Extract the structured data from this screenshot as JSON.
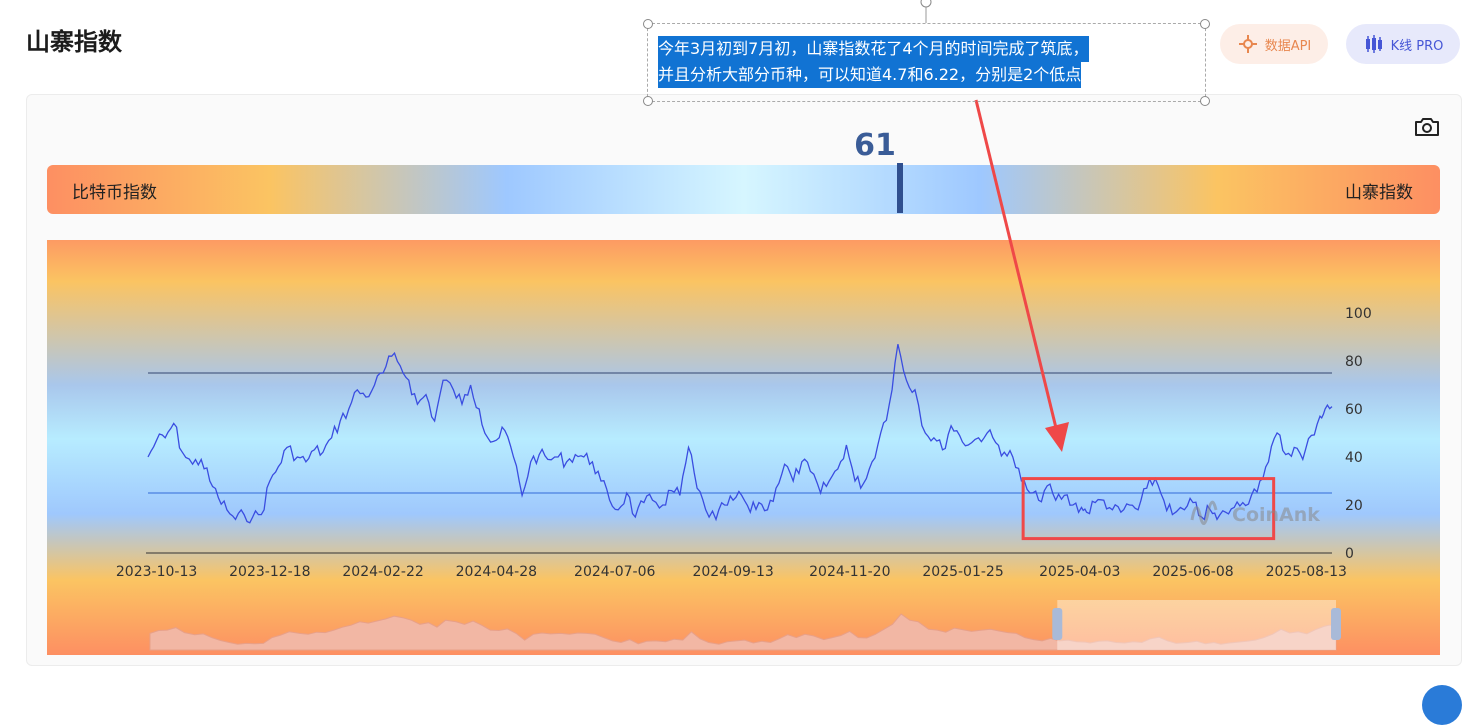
{
  "page": {
    "title": "山寨指数"
  },
  "buttons": {
    "api_label": "数据API",
    "kline_label": "K线 PRO"
  },
  "toolbar": {
    "camera_icon": "camera-icon"
  },
  "gauge": {
    "current_value": "61",
    "value_fraction": 0.61,
    "left_label": "比特币指数",
    "right_label": "山寨指数"
  },
  "annotation": {
    "line1": "今年3月初到7月初，山寨指数花了4个月的时间完成了筑底，",
    "line2": "并且分析大部分币种，可以知道4.7和6.22，分别是2个低点"
  },
  "watermark": "CoinAnk",
  "colors": {
    "series": "#3a4de0",
    "annotation_box": "#ef4848",
    "arrow": "#ef4848",
    "high_line": "#4d5f86",
    "low_line": "#4a7fe0"
  },
  "chart_data": {
    "type": "line",
    "title": "",
    "ylim": [
      0,
      100
    ],
    "yticks": [
      0,
      20,
      40,
      60,
      80,
      100
    ],
    "reference_lines": [
      75,
      25
    ],
    "xtick_labels": [
      "2023-10-13",
      "2023-12-18",
      "2024-02-22",
      "2024-04-28",
      "2024-07-06",
      "2024-09-13",
      "2024-11-20",
      "2025-01-25",
      "2025-04-03",
      "2025-06-08",
      "2025-08-13"
    ],
    "x_start": "2023-10-08",
    "x_end": "2025-08-28",
    "series": [
      {
        "points": [
          [
            "2023-10-08",
            40
          ],
          [
            "2023-10-13",
            47
          ],
          [
            "2023-10-18",
            48
          ],
          [
            "2023-10-23",
            54
          ],
          [
            "2023-10-28",
            42
          ],
          [
            "2023-11-03",
            37
          ],
          [
            "2023-11-08",
            39
          ],
          [
            "2023-11-13",
            30
          ],
          [
            "2023-11-18",
            23
          ],
          [
            "2023-11-23",
            18
          ],
          [
            "2023-11-28",
            14
          ],
          [
            "2023-12-03",
            16
          ],
          [
            "2023-12-08",
            15
          ],
          [
            "2023-12-13",
            16
          ],
          [
            "2023-12-18",
            30
          ],
          [
            "2023-12-23",
            36
          ],
          [
            "2023-12-28",
            44
          ],
          [
            "2024-01-03",
            40
          ],
          [
            "2024-01-08",
            38
          ],
          [
            "2024-01-13",
            43
          ],
          [
            "2024-01-18",
            42
          ],
          [
            "2024-01-23",
            48
          ],
          [
            "2024-01-28",
            55
          ],
          [
            "2024-02-02",
            60
          ],
          [
            "2024-02-07",
            68
          ],
          [
            "2024-02-12",
            65
          ],
          [
            "2024-02-17",
            70
          ],
          [
            "2024-02-22",
            75
          ],
          [
            "2024-02-27",
            82
          ],
          [
            "2024-03-03",
            78
          ],
          [
            "2024-03-08",
            72
          ],
          [
            "2024-03-13",
            62
          ],
          [
            "2024-03-18",
            66
          ],
          [
            "2024-03-23",
            55
          ],
          [
            "2024-03-28",
            72
          ],
          [
            "2024-04-03",
            68
          ],
          [
            "2024-04-08",
            62
          ],
          [
            "2024-04-13",
            70
          ],
          [
            "2024-04-18",
            60
          ],
          [
            "2024-04-23",
            48
          ],
          [
            "2024-04-28",
            47
          ],
          [
            "2024-05-03",
            51
          ],
          [
            "2024-05-08",
            40
          ],
          [
            "2024-05-13",
            24
          ],
          [
            "2024-05-18",
            38
          ],
          [
            "2024-05-23",
            41
          ],
          [
            "2024-05-28",
            39
          ],
          [
            "2024-06-03",
            40
          ],
          [
            "2024-06-08",
            38
          ],
          [
            "2024-06-13",
            41
          ],
          [
            "2024-06-18",
            40
          ],
          [
            "2024-06-23",
            38
          ],
          [
            "2024-06-28",
            30
          ],
          [
            "2024-07-03",
            22
          ],
          [
            "2024-07-08",
            18
          ],
          [
            "2024-07-13",
            25
          ],
          [
            "2024-07-18",
            15
          ],
          [
            "2024-07-23",
            21
          ],
          [
            "2024-07-28",
            22
          ],
          [
            "2024-08-03",
            20
          ],
          [
            "2024-08-08",
            26
          ],
          [
            "2024-08-13",
            24
          ],
          [
            "2024-08-18",
            44
          ],
          [
            "2024-08-23",
            27
          ],
          [
            "2024-08-28",
            18
          ],
          [
            "2024-09-03",
            14
          ],
          [
            "2024-09-08",
            20
          ],
          [
            "2024-09-13",
            22
          ],
          [
            "2024-09-18",
            24
          ],
          [
            "2024-09-23",
            17
          ],
          [
            "2024-09-28",
            21
          ],
          [
            "2024-10-03",
            18
          ],
          [
            "2024-10-08",
            27
          ],
          [
            "2024-10-13",
            37
          ],
          [
            "2024-10-18",
            30
          ],
          [
            "2024-10-23",
            38
          ],
          [
            "2024-10-28",
            34
          ],
          [
            "2024-11-03",
            25
          ],
          [
            "2024-11-08",
            30
          ],
          [
            "2024-11-13",
            35
          ],
          [
            "2024-11-18",
            45
          ],
          [
            "2024-11-23",
            30
          ],
          [
            "2024-11-28",
            29
          ],
          [
            "2024-12-03",
            38
          ],
          [
            "2024-12-08",
            50
          ],
          [
            "2024-12-13",
            62
          ],
          [
            "2024-12-18",
            87
          ],
          [
            "2024-12-23",
            72
          ],
          [
            "2024-12-28",
            68
          ],
          [
            "2025-01-03",
            50
          ],
          [
            "2025-01-08",
            48
          ],
          [
            "2025-01-13",
            43
          ],
          [
            "2025-01-18",
            53
          ],
          [
            "2025-01-23",
            49
          ],
          [
            "2025-01-28",
            45
          ],
          [
            "2025-02-03",
            48
          ],
          [
            "2025-02-08",
            50
          ],
          [
            "2025-02-13",
            46
          ],
          [
            "2025-02-18",
            42
          ],
          [
            "2025-02-23",
            40
          ],
          [
            "2025-02-28",
            30
          ],
          [
            "2025-03-05",
            25
          ],
          [
            "2025-03-10",
            22
          ],
          [
            "2025-03-15",
            28
          ],
          [
            "2025-03-20",
            22
          ],
          [
            "2025-03-25",
            24
          ],
          [
            "2025-03-30",
            20
          ],
          [
            "2025-04-04",
            19
          ],
          [
            "2025-04-07",
            17
          ],
          [
            "2025-04-12",
            21
          ],
          [
            "2025-04-17",
            22
          ],
          [
            "2025-04-22",
            18
          ],
          [
            "2025-04-27",
            17
          ],
          [
            "2025-05-02",
            20
          ],
          [
            "2025-05-07",
            18
          ],
          [
            "2025-05-12",
            27
          ],
          [
            "2025-05-17",
            31
          ],
          [
            "2025-05-22",
            22
          ],
          [
            "2025-05-27",
            16
          ],
          [
            "2025-06-03",
            18
          ],
          [
            "2025-06-08",
            21
          ],
          [
            "2025-06-13",
            15
          ],
          [
            "2025-06-18",
            18
          ],
          [
            "2025-06-22",
            14
          ],
          [
            "2025-06-27",
            17
          ],
          [
            "2025-07-02",
            19
          ],
          [
            "2025-07-07",
            21
          ],
          [
            "2025-07-12",
            24
          ],
          [
            "2025-07-17",
            30
          ],
          [
            "2025-07-22",
            38
          ],
          [
            "2025-07-27",
            50
          ],
          [
            "2025-08-01",
            41
          ],
          [
            "2025-08-06",
            44
          ],
          [
            "2025-08-11",
            39
          ],
          [
            "2025-08-16",
            49
          ],
          [
            "2025-08-21",
            57
          ],
          [
            "2025-08-24",
            60
          ],
          [
            "2025-08-28",
            61
          ]
        ]
      }
    ],
    "highlight_box": {
      "x_from": "2025-03-01",
      "x_to": "2025-07-25",
      "y_from": 6,
      "y_to": 31
    },
    "zoom_window": {
      "start_fraction": 0.765,
      "end_fraction": 1.0
    }
  }
}
